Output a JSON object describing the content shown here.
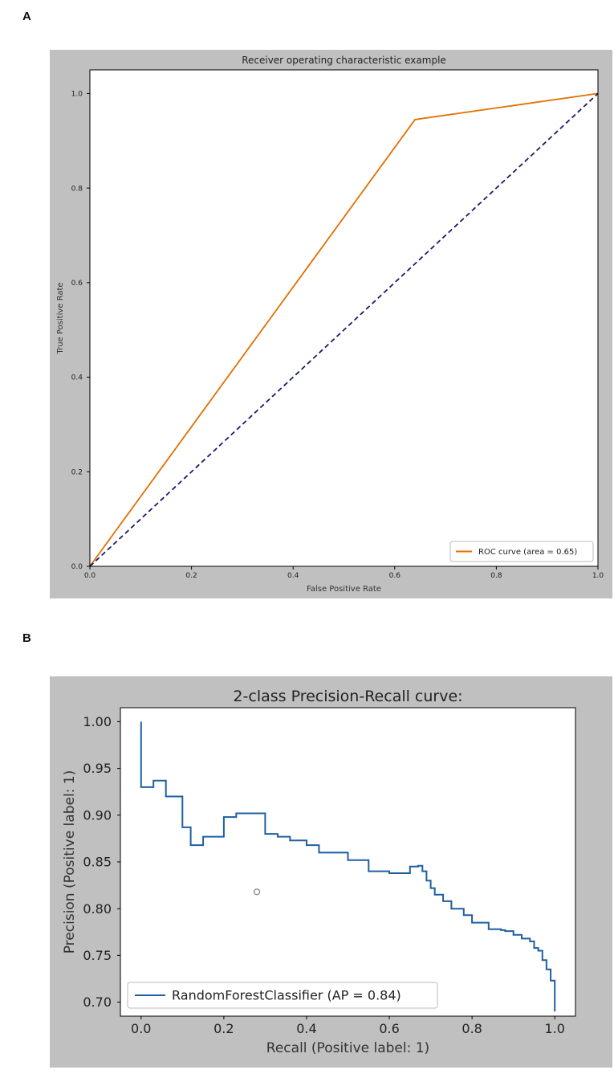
{
  "panels": {
    "a_label": "A",
    "b_label": "B"
  },
  "chart_data": [
    {
      "type": "line",
      "title": "Receiver operating characteristic example",
      "xlabel": "False Positive Rate",
      "ylabel": "True Positive Rate",
      "xlim": [
        0,
        1
      ],
      "ylim": [
        0,
        1.05
      ],
      "xticks": [
        0.0,
        0.2,
        0.4,
        0.6,
        0.8,
        1.0
      ],
      "yticks": [
        0.0,
        0.2,
        0.4,
        0.6,
        0.8,
        1.0
      ],
      "xtick_labels": [
        "0.0",
        "0.2",
        "0.4",
        "0.6",
        "0.8",
        "1.0"
      ],
      "ytick_labels": [
        "0.0",
        "0.2",
        "0.4",
        "0.6",
        "0.8",
        "1.0"
      ],
      "legend_position": "lower-right",
      "background": "#c0c0c0",
      "series": [
        {
          "name": "ROC curve (area = 0.65)",
          "color": "#e07000",
          "style": "solid",
          "x": [
            0.0,
            0.64,
            1.0
          ],
          "y": [
            0.0,
            0.945,
            1.0
          ],
          "in_legend": true
        },
        {
          "name": "chance",
          "color": "#1a1a6e",
          "style": "dashed",
          "x": [
            0.0,
            1.0
          ],
          "y": [
            0.0,
            1.0
          ],
          "in_legend": false
        }
      ]
    },
    {
      "type": "line",
      "title": "2-class Precision-Recall curve:",
      "xlabel": "Recall (Positive label: 1)",
      "ylabel": "Precision (Positive label: 1)",
      "xlim": [
        -0.05,
        1.05
      ],
      "ylim": [
        0.685,
        1.015
      ],
      "xticks": [
        0.0,
        0.2,
        0.4,
        0.6,
        0.8,
        1.0
      ],
      "yticks": [
        0.7,
        0.75,
        0.8,
        0.85,
        0.9,
        0.95,
        1.0
      ],
      "xtick_labels": [
        "0.0",
        "0.2",
        "0.4",
        "0.6",
        "0.8",
        "1.0"
      ],
      "ytick_labels": [
        "0.70",
        "0.75",
        "0.80",
        "0.85",
        "0.90",
        "0.95",
        "1.00"
      ],
      "legend_position": "lower-left",
      "background": "#c0c0c0",
      "marker": {
        "x": 0.28,
        "y": 0.818
      },
      "series": [
        {
          "name": "RandomForestClassifier (AP = 0.84)",
          "color": "#1f5fa0",
          "style": "step",
          "x": [
            0.0,
            0.0,
            0.03,
            0.06,
            0.1,
            0.12,
            0.15,
            0.2,
            0.23,
            0.3,
            0.33,
            0.36,
            0.4,
            0.43,
            0.5,
            0.55,
            0.6,
            0.65,
            0.67,
            0.68,
            0.69,
            0.7,
            0.71,
            0.73,
            0.75,
            0.78,
            0.8,
            0.84,
            0.87,
            0.88,
            0.9,
            0.92,
            0.94,
            0.95,
            0.96,
            0.97,
            0.98,
            0.99,
            1.0
          ],
          "y": [
            1.0,
            0.93,
            0.937,
            0.92,
            0.887,
            0.868,
            0.877,
            0.898,
            0.902,
            0.88,
            0.877,
            0.873,
            0.868,
            0.86,
            0.852,
            0.84,
            0.838,
            0.845,
            0.846,
            0.84,
            0.83,
            0.822,
            0.815,
            0.808,
            0.8,
            0.793,
            0.785,
            0.778,
            0.777,
            0.776,
            0.772,
            0.768,
            0.765,
            0.758,
            0.755,
            0.745,
            0.735,
            0.723,
            0.69
          ]
        }
      ]
    }
  ]
}
